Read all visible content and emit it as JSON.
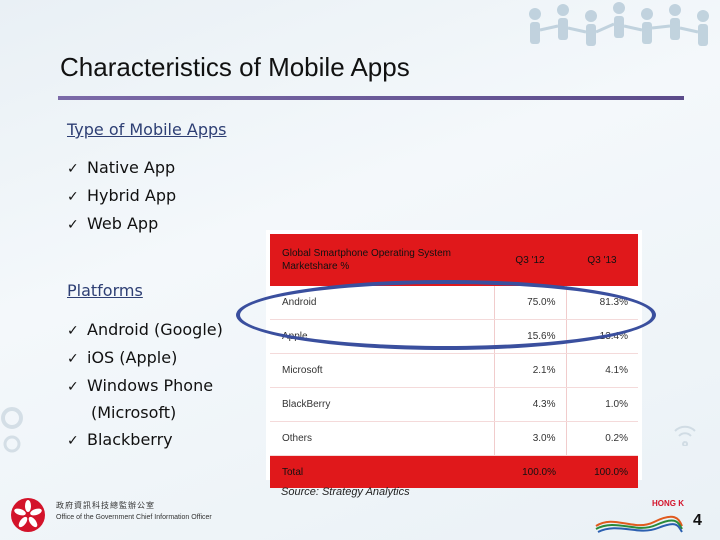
{
  "slide": {
    "title": "Characteristics of Mobile Apps",
    "page_number": "4"
  },
  "types": {
    "heading": "Type of Mobile Apps",
    "items": [
      "Native App",
      "Hybrid App",
      "Web App"
    ]
  },
  "platforms": {
    "heading": "Platforms",
    "items": [
      "Android (Google)",
      "iOS (Apple)",
      "Windows Phone",
      "(Microsoft)",
      "Blackberry"
    ]
  },
  "table": {
    "header_label": "Global Smartphone Operating System Marketshare %",
    "col1": "Q3 '12",
    "col2": "Q3 '13",
    "rows": [
      {
        "name": "Android",
        "q12": "75.0%",
        "q13": "81.3%"
      },
      {
        "name": "Apple",
        "q12": "15.6%",
        "q13": "13.4%"
      },
      {
        "name": "Microsoft",
        "q12": "2.1%",
        "q13": "4.1%"
      },
      {
        "name": "BlackBerry",
        "q12": "4.3%",
        "q13": "1.0%"
      },
      {
        "name": "Others",
        "q12": "3.0%",
        "q13": "0.2%"
      }
    ],
    "total": {
      "name": "Total",
      "q12": "100.0%",
      "q13": "100.0%"
    },
    "source": "Source: Strategy Analytics"
  },
  "footer": {
    "office_cn": "政府資訊科技總監辦公室",
    "office_en": "Office of the Government Chief Information Officer",
    "hk_logo_text": "HONG KONG"
  },
  "colors": {
    "table_red": "#e0181b",
    "ellipse_blue": "#3a4f9e",
    "title_rule": "#6b5b9a",
    "heading_blue": "#2e3f74"
  }
}
